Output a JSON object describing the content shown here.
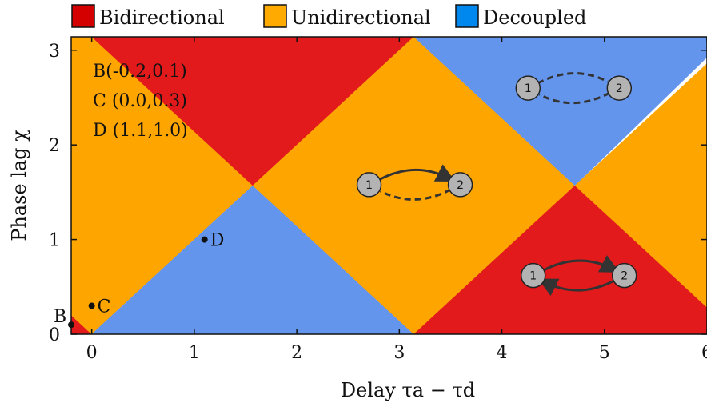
{
  "chart_data": {
    "type": "region-map",
    "xlabel": "Delay τa − τd",
    "ylabel": "Phase lag χ",
    "xlim": [
      -0.2,
      6.0
    ],
    "ylim": [
      0,
      3.1416
    ],
    "x_ticks": [
      "0",
      "1",
      "2",
      "3",
      "4",
      "5",
      "6"
    ],
    "x_tick_values": [
      0,
      1,
      2,
      3,
      4,
      5,
      6
    ],
    "y_ticks": [
      "0",
      "1",
      "2",
      "3"
    ],
    "y_tick_values": [
      0,
      1,
      2,
      3
    ],
    "legend": [
      {
        "label": "Bidirectional",
        "color": "#d40000"
      },
      {
        "label": "Unidirectional",
        "color": "#ffaa00"
      },
      {
        "label": "Decoupled",
        "color": "#0088ee"
      }
    ],
    "region_colors": {
      "bidirectional": "#e31a1c",
      "unidirectional": "#ffa500",
      "decoupled": "#6495ed"
    },
    "regions": [
      {
        "type": "bidirectional",
        "polygon": [
          [
            -0.2,
            0
          ],
          [
            0,
            0
          ],
          [
            -0.2,
            0.2
          ]
        ]
      },
      {
        "type": "unidirectional",
        "polygon": [
          [
            -0.2,
            0.2
          ],
          [
            0,
            0
          ],
          [
            1.5708,
            1.5708
          ],
          [
            0,
            3.1416
          ],
          [
            -0.2,
            3.1416
          ]
        ]
      },
      {
        "type": "decoupled",
        "polygon": [
          [
            0,
            0
          ],
          [
            3.1416,
            0
          ],
          [
            1.5708,
            1.5708
          ]
        ]
      },
      {
        "type": "bidirectional",
        "polygon": [
          [
            0,
            3.1416
          ],
          [
            3.1416,
            3.1416
          ],
          [
            1.5708,
            1.5708
          ]
        ]
      },
      {
        "type": "unidirectional",
        "polygon": [
          [
            1.5708,
            1.5708
          ],
          [
            3.1416,
            0
          ],
          [
            4.7124,
            1.5708
          ],
          [
            3.1416,
            3.1416
          ]
        ]
      },
      {
        "type": "bidirectional",
        "polygon": [
          [
            3.1416,
            0
          ],
          [
            6.0,
            0
          ],
          [
            6.0,
            1.2832
          ],
          [
            4.7124,
            1.5708
          ]
        ]
      },
      {
        "type": "decoupled",
        "polygon": [
          [
            3.1416,
            3.1416
          ],
          [
            6.0,
            3.1416
          ],
          [
            6.0,
            2.9248
          ],
          [
            4.7124,
            1.5708
          ]
        ]
      },
      {
        "type": "unidirectional",
        "polygon": [
          [
            4.7124,
            1.5708
          ],
          [
            6.0,
            0.2832
          ],
          [
            6.0,
            2.8584
          ]
        ]
      }
    ],
    "points": [
      {
        "label": "B",
        "x": -0.2,
        "y": 0.1
      },
      {
        "label": "C",
        "x": 0.0,
        "y": 0.3
      },
      {
        "label": "D",
        "x": 1.1,
        "y": 1.0
      }
    ],
    "annotations": [
      "B(-0.2,0.1)",
      "C (0.0,0.3)",
      "D (1.1,1.0)"
    ],
    "diagrams": [
      {
        "type": "decoupled",
        "x": 4.7,
        "y": 2.6,
        "nodes": [
          "1",
          "2"
        ]
      },
      {
        "type": "unidirectional",
        "x": 3.15,
        "y": 1.58,
        "nodes": [
          "1",
          "2"
        ]
      },
      {
        "type": "bidirectional",
        "x": 4.75,
        "y": 0.62,
        "nodes": [
          "1",
          "2"
        ]
      }
    ]
  }
}
